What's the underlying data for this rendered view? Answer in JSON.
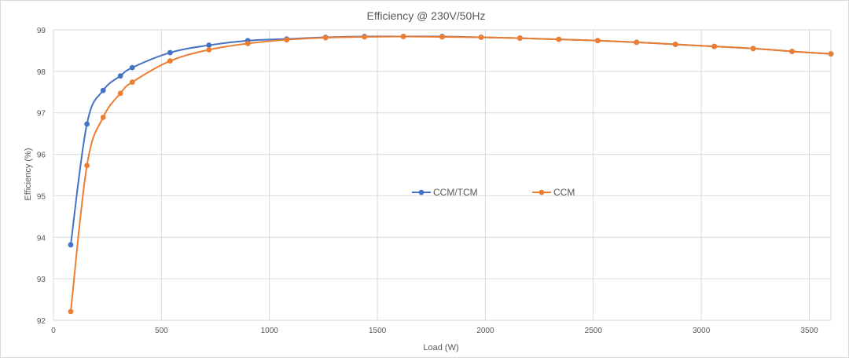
{
  "chart_data": {
    "type": "line",
    "title": "Efficiency @ 230V/50Hz",
    "xlabel": "Load (W)",
    "ylabel": "Efficiency (%)",
    "xlim": [
      0,
      3600
    ],
    "ylim": [
      92,
      99
    ],
    "xticks": [
      0,
      500,
      1000,
      1500,
      2000,
      2500,
      3000,
      3500
    ],
    "yticks": [
      92,
      93,
      94,
      95,
      96,
      97,
      98,
      99
    ],
    "grid": true,
    "legend_position": "center-right",
    "series": [
      {
        "name": "CCM/TCM",
        "color": "#4472C4",
        "x": [
          80,
          155,
          230,
          310,
          365,
          540,
          720,
          900,
          1080,
          1260,
          1440,
          1620,
          1800,
          1980,
          2160,
          2340,
          2520,
          2700,
          2880,
          3060,
          3240,
          3420,
          3600
        ],
        "y": [
          93.82,
          96.73,
          97.54,
          97.89,
          98.09,
          98.45,
          98.63,
          98.74,
          98.78,
          98.82,
          98.84,
          98.84,
          98.84,
          98.82,
          98.8,
          98.77,
          98.74,
          98.7,
          98.65,
          98.6,
          98.55,
          98.48,
          98.42
        ]
      },
      {
        "name": "CCM",
        "color": "#ED7D31",
        "x": [
          80,
          155,
          230,
          310,
          365,
          540,
          720,
          900,
          1080,
          1260,
          1440,
          1620,
          1800,
          1980,
          2160,
          2340,
          2520,
          2700,
          2880,
          3060,
          3240,
          3420,
          3600
        ],
        "y": [
          92.21,
          95.73,
          96.89,
          97.47,
          97.74,
          98.25,
          98.52,
          98.67,
          98.76,
          98.81,
          98.83,
          98.84,
          98.83,
          98.82,
          98.8,
          98.77,
          98.74,
          98.7,
          98.65,
          98.6,
          98.55,
          98.48,
          98.42
        ]
      }
    ]
  }
}
